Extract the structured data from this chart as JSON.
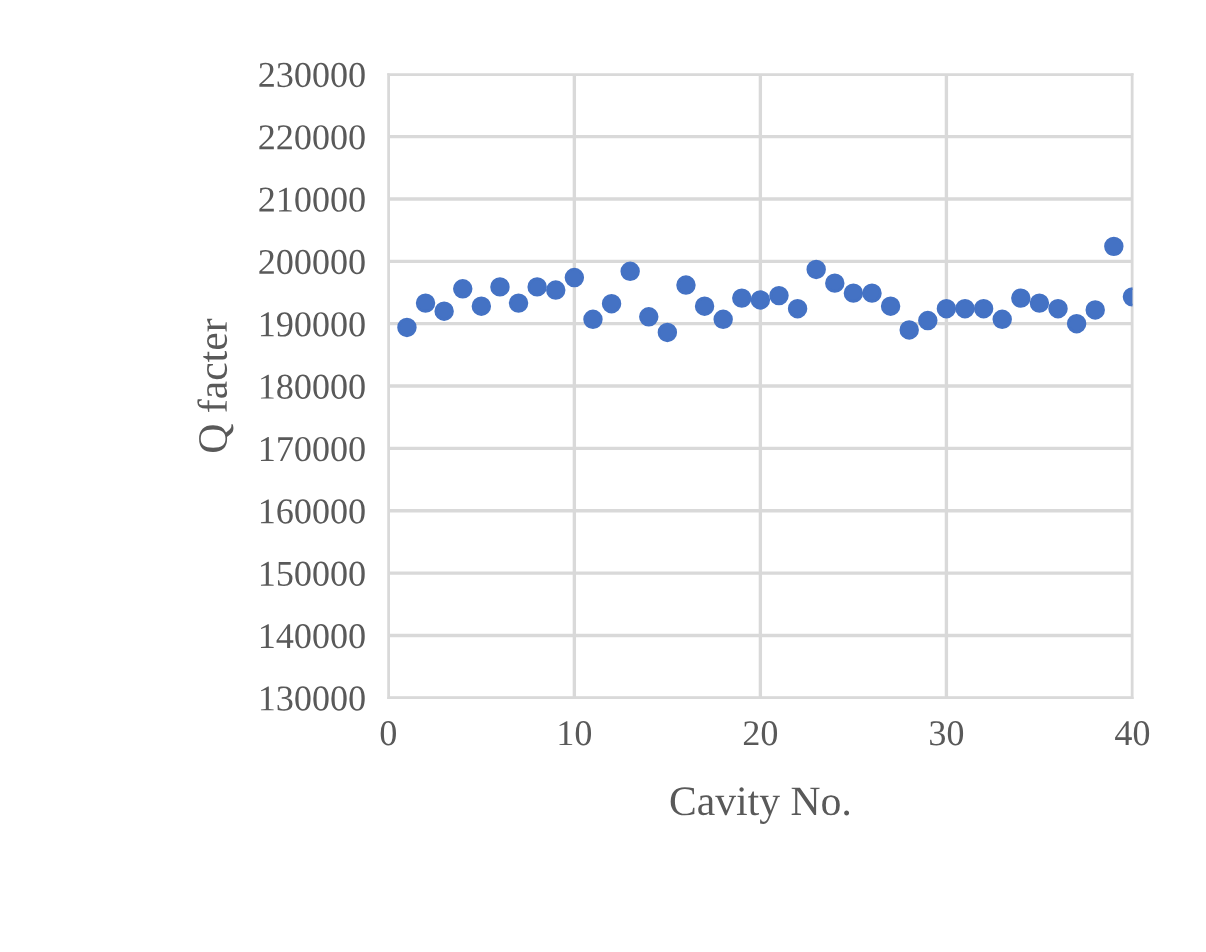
{
  "chart_data": {
    "type": "scatter",
    "xlabel": "Cavity No.",
    "ylabel": "Q facter",
    "x": [
      1,
      2,
      3,
      4,
      5,
      6,
      7,
      8,
      9,
      10,
      11,
      12,
      13,
      14,
      15,
      16,
      17,
      18,
      19,
      20,
      21,
      22,
      23,
      24,
      25,
      26,
      27,
      28,
      29,
      30,
      31,
      32,
      33,
      34,
      35,
      36,
      37,
      38,
      39,
      40
    ],
    "series": [
      {
        "color": "#4472c4",
        "values": [
          189400,
          193300,
          192000,
          195600,
          192800,
          195900,
          193300,
          195900,
          195400,
          197400,
          190700,
          193200,
          198400,
          191100,
          188600,
          196200,
          192800,
          190700,
          194100,
          193800,
          194500,
          192400,
          198700,
          196500,
          194900,
          194900,
          192800,
          189000,
          190500,
          192400,
          192400,
          192400,
          190700,
          194100,
          193300,
          192400,
          190000,
          192200,
          202400,
          194300
        ]
      }
    ],
    "xlim": [
      0,
      40
    ],
    "xticks": [
      0,
      10,
      20,
      30,
      40
    ],
    "ylim": [
      130000,
      230000
    ],
    "yticks": [
      130000,
      140000,
      150000,
      160000,
      170000,
      180000,
      190000,
      200000,
      210000,
      220000,
      230000
    ],
    "grid": true,
    "marker": "circle"
  }
}
